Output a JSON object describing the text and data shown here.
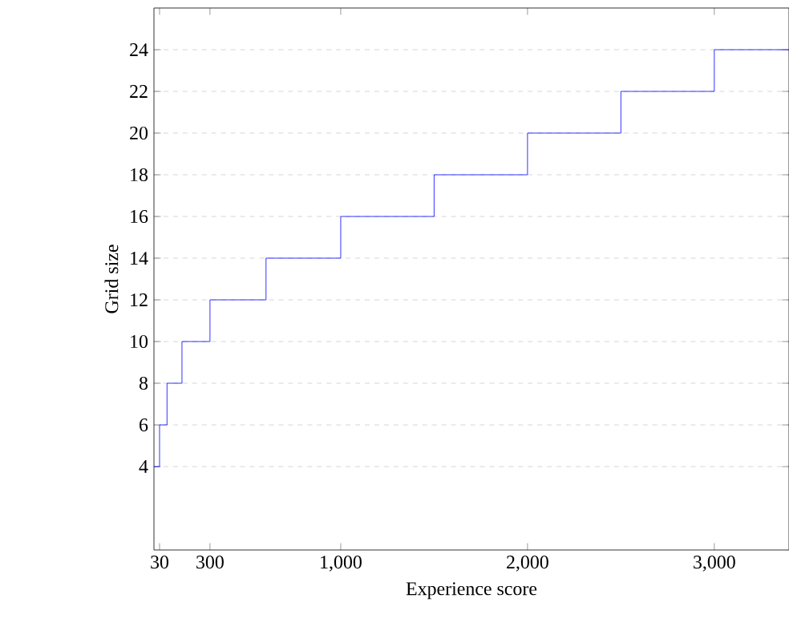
{
  "chart_data": {
    "type": "step",
    "xlabel": "Experience score",
    "ylabel": "Grid size",
    "x": [
      0,
      30,
      70,
      150,
      300,
      600,
      1000,
      1500,
      2000,
      2500,
      3000,
      3400
    ],
    "series": [
      {
        "color": "#0000ff",
        "values": [
          4,
          6,
          8,
          10,
          12,
          14,
          16,
          18,
          20,
          22,
          24,
          24
        ]
      }
    ],
    "xlim": [
      0,
      3400
    ],
    "ylim": [
      0,
      26
    ],
    "xticks": [
      30,
      300,
      {
        "value": 1000,
        "label": "1,000"
      },
      {
        "value": 2000,
        "label": "2,000"
      },
      {
        "value": 3000,
        "label": "3,000"
      }
    ],
    "yticks": [
      4,
      6,
      8,
      10,
      12,
      14,
      16,
      18,
      20,
      22,
      24
    ],
    "grid": "y",
    "marker": "none",
    "line_style": "solid"
  }
}
